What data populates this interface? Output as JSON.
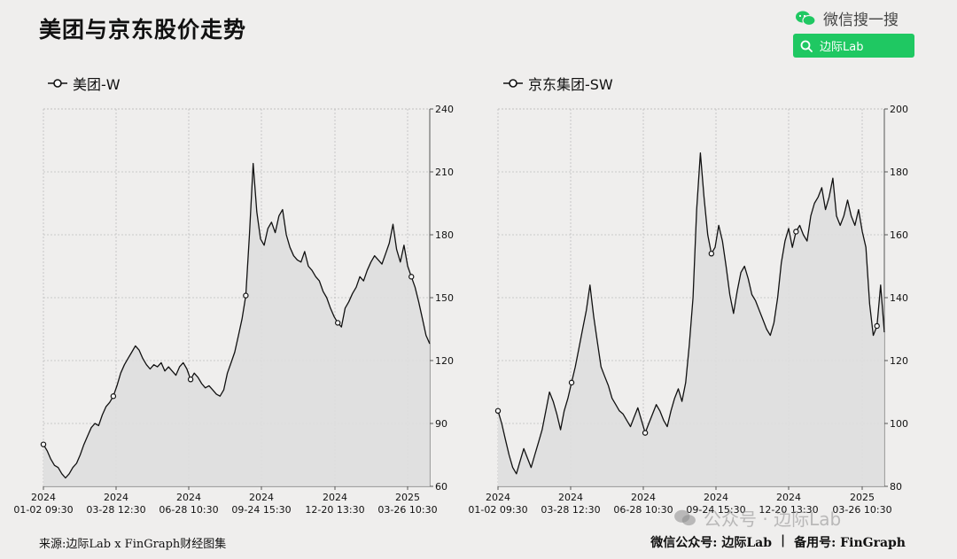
{
  "page": {
    "title": "美团与京东股价走势",
    "wechat_label": "微信搜一搜",
    "search_label": "边际Lab",
    "source": "来源:边际Lab x FinGraph财经图集",
    "footer_account": "微信公众号: 边际Lab",
    "footer_sep": "|",
    "footer_record": "备用号: FinGraph",
    "watermark": "公众号 · 边际Lab"
  },
  "chart_data": [
    {
      "type": "line",
      "legend": "美团-W",
      "y_ticks": [
        60,
        90,
        120,
        150,
        180,
        210,
        240
      ],
      "y_tick_labels": [
        "60",
        "90",
        "120",
        "150",
        "180",
        "210",
        "240"
      ],
      "ylim": [
        60,
        240
      ],
      "x_ticks": [
        {
          "year": "2024",
          "date": "01-02 09:30"
        },
        {
          "year": "2024",
          "date": "03-28 12:30"
        },
        {
          "year": "2024",
          "date": "06-28 10:30"
        },
        {
          "year": "2024",
          "date": "09-24 15:30"
        },
        {
          "year": "2024",
          "date": "12-20 13:30"
        },
        {
          "year": "2025",
          "date": "03-26 10:30"
        }
      ],
      "x": [
        0,
        1,
        2,
        3,
        4,
        5,
        6,
        7,
        8,
        9,
        10,
        11,
        12,
        13,
        14,
        15,
        16,
        17,
        18,
        19,
        20,
        21,
        22,
        23,
        24,
        25,
        26,
        27,
        28,
        29,
        30,
        31,
        32,
        33,
        34,
        35,
        36,
        37,
        38,
        39,
        40,
        41,
        42,
        43,
        44,
        45,
        46,
        47,
        48,
        49,
        50,
        51,
        52,
        53,
        54,
        55,
        56,
        57,
        58,
        59,
        60,
        61,
        62,
        63,
        64,
        65,
        66,
        67,
        68,
        69,
        70,
        71,
        72,
        73,
        74,
        75,
        76,
        77,
        78,
        79,
        80,
        81,
        82,
        83,
        84,
        85,
        86,
        87,
        88,
        89,
        90,
        91,
        92,
        93,
        94,
        95,
        96,
        97,
        98,
        99,
        100,
        101,
        102,
        103,
        104,
        105
      ],
      "values": [
        80,
        77,
        73,
        70,
        69,
        66,
        64,
        66,
        69,
        71,
        75,
        80,
        84,
        88,
        90,
        89,
        94,
        98,
        100,
        103,
        108,
        114,
        118,
        121,
        124,
        127,
        125,
        121,
        118,
        116,
        118,
        117,
        119,
        115,
        117,
        115,
        113,
        117,
        119,
        116,
        111,
        114,
        112,
        109,
        107,
        108,
        106,
        104,
        103,
        106,
        114,
        119,
        124,
        132,
        140,
        151,
        180,
        214,
        191,
        178,
        175,
        183,
        186,
        181,
        189,
        192,
        180,
        174,
        170,
        168,
        167,
        172,
        165,
        163,
        160,
        158,
        153,
        150,
        145,
        141,
        138,
        136,
        145,
        148,
        152,
        155,
        160,
        158,
        163,
        167,
        170,
        168,
        166,
        171,
        176,
        185,
        173,
        167,
        175,
        165,
        160,
        155,
        148,
        140,
        132,
        128
      ],
      "markers": [
        0,
        19,
        40,
        55,
        80,
        100
      ]
    },
    {
      "type": "line",
      "legend": "京东集团-SW",
      "y_ticks": [
        80,
        100,
        120,
        140,
        160,
        180,
        200
      ],
      "y_tick_labels": [
        "80",
        "100",
        "120",
        "140",
        "160",
        "180",
        "200"
      ],
      "ylim": [
        80,
        200
      ],
      "x_ticks": [
        {
          "year": "2024",
          "date": "01-02 09:30"
        },
        {
          "year": "2024",
          "date": "03-28 12:30"
        },
        {
          "year": "2024",
          "date": "06-28 10:30"
        },
        {
          "year": "2024",
          "date": "09-24 15:30"
        },
        {
          "year": "2024",
          "date": "12-20 13:30"
        },
        {
          "year": "2025",
          "date": "03-26 10:30"
        }
      ],
      "x": [
        0,
        1,
        2,
        3,
        4,
        5,
        6,
        7,
        8,
        9,
        10,
        11,
        12,
        13,
        14,
        15,
        16,
        17,
        18,
        19,
        20,
        21,
        22,
        23,
        24,
        25,
        26,
        27,
        28,
        29,
        30,
        31,
        32,
        33,
        34,
        35,
        36,
        37,
        38,
        39,
        40,
        41,
        42,
        43,
        44,
        45,
        46,
        47,
        48,
        49,
        50,
        51,
        52,
        53,
        54,
        55,
        56,
        57,
        58,
        59,
        60,
        61,
        62,
        63,
        64,
        65,
        66,
        67,
        68,
        69,
        70,
        71,
        72,
        73,
        74,
        75,
        76,
        77,
        78,
        79,
        80,
        81,
        82,
        83,
        84,
        85,
        86,
        87,
        88,
        89,
        90,
        91,
        92,
        93,
        94,
        95,
        96,
        97,
        98,
        99,
        100,
        101,
        102,
        103,
        104,
        105
      ],
      "values": [
        104,
        100,
        95,
        90,
        86,
        84,
        88,
        92,
        89,
        86,
        90,
        94,
        98,
        104,
        110,
        107,
        103,
        98,
        104,
        108,
        113,
        118,
        124,
        130,
        136,
        144,
        134,
        126,
        118,
        115,
        112,
        108,
        106,
        104,
        103,
        101,
        99,
        102,
        105,
        101,
        97,
        100,
        103,
        106,
        104,
        101,
        99,
        104,
        108,
        111,
        107,
        113,
        125,
        140,
        168,
        186,
        172,
        160,
        154,
        156,
        163,
        158,
        150,
        141,
        135,
        142,
        148,
        150,
        146,
        141,
        139,
        136,
        133,
        130,
        128,
        132,
        140,
        151,
        158,
        162,
        156,
        161,
        163,
        160,
        158,
        166,
        170,
        172,
        175,
        168,
        172,
        178,
        166,
        163,
        166,
        171,
        166,
        163,
        168,
        161,
        156,
        138,
        128,
        131,
        144,
        129
      ],
      "markers": [
        0,
        20,
        40,
        58,
        81,
        103
      ]
    }
  ]
}
